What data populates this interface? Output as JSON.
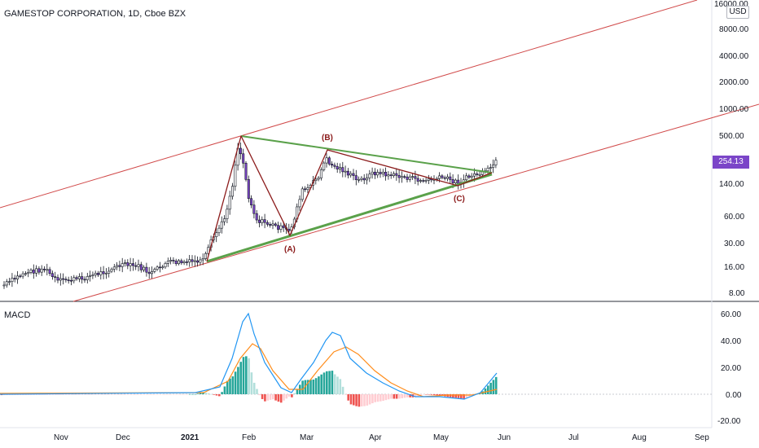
{
  "header": {
    "symbol_title": "GAMESTOP CORPORATION, 1D, Cboe BZX",
    "currency": "USD",
    "last_price": "254.13"
  },
  "price_pane": {
    "scale": "log",
    "y_ticks": [
      "16000.00",
      "8000.00",
      "4000.00",
      "2000.00",
      "1000.00",
      "500.00",
      "140.00",
      "60.00",
      "30.00",
      "16.00",
      "8.00"
    ],
    "wave_labels": [
      "(A)",
      "(B)",
      "(C)"
    ]
  },
  "macd_pane": {
    "title": "MACD",
    "y_ticks": [
      "60.00",
      "40.00",
      "20.00",
      "0.00",
      "-20.00"
    ]
  },
  "x_axis": {
    "ticks": [
      "Nov",
      "Dec",
      "2021",
      "Feb",
      "Mar",
      "Apr",
      "May",
      "Jun",
      "Jul",
      "Aug",
      "Sep"
    ]
  },
  "colors": {
    "up_candle": "#131722",
    "down_candle_body": "#7b45c8",
    "channel_line": "#d14b4b",
    "triangle_line": "#5aa14a",
    "wave_line": "#8b1a1a",
    "macd_line": "#2196f3",
    "signal_line": "#ff8c1a",
    "hist_pos_strong": "#26a69a",
    "hist_pos_weak": "#b2dfdb",
    "hist_neg_strong": "#ef5350",
    "hist_neg_weak": "#ffcdd2",
    "price_tag": "#7b45c8"
  }
}
